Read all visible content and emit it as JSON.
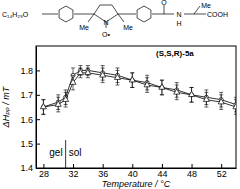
{
  "chart_data": {
    "type": "line",
    "xlabel": "Temperature / °C",
    "ylabel": "ΔHₚₚ / mT",
    "x": [
      28,
      30,
      31,
      32,
      33,
      34,
      36,
      38,
      40,
      42,
      44,
      46,
      48,
      50,
      52,
      54
    ],
    "series": [
      {
        "color": "#000000",
        "marker": "circle",
        "line_style": "solid",
        "values": [
          1.65,
          1.67,
          1.69,
          1.78,
          1.8,
          1.8,
          1.79,
          1.78,
          1.76,
          1.75,
          1.73,
          1.72,
          1.7,
          1.69,
          1.68,
          1.66
        ],
        "errors": [
          0.03,
          0.03,
          0.03,
          0.03,
          0.02,
          0.02,
          0.03,
          0.03,
          0.03,
          0.03,
          0.03,
          0.03,
          0.03,
          0.03,
          0.03,
          0.03
        ]
      },
      {
        "color": "#000000",
        "marker": "triangle",
        "line_style": "solid",
        "values": [
          1.65,
          1.66,
          1.68,
          1.75,
          1.79,
          1.79,
          1.78,
          1.77,
          1.76,
          1.74,
          1.73,
          1.71,
          1.7,
          1.68,
          1.67,
          1.65
        ],
        "errors": [
          0.03,
          0.03,
          0.03,
          0.03,
          0.02,
          0.02,
          0.03,
          0.03,
          0.03,
          0.03,
          0.03,
          0.03,
          0.03,
          0.03,
          0.03,
          0.03
        ]
      }
    ],
    "xlim": [
      27,
      54
    ],
    "xticks": [
      28,
      32,
      36,
      40,
      44,
      48,
      52
    ],
    "ylim": [
      1.4,
      1.9
    ],
    "yticks": [
      1.4,
      1.5,
      1.6,
      1.7,
      1.8
    ],
    "transition": 31,
    "annotations": [
      "gel",
      "sol"
    ],
    "structure_labels": [
      "C₁₄H₂₉O",
      "Me",
      "Me",
      "N",
      "O•",
      "O",
      "N",
      "H",
      "Me",
      "COOH",
      "(S,S,R)-5a"
    ]
  }
}
